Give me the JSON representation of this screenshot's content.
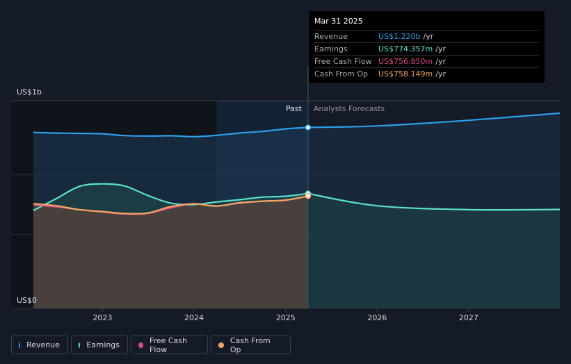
{
  "chart_data": {
    "type": "area",
    "y_axis": {
      "top_label": "US$1b",
      "bottom_label": "US$0",
      "ylim": [
        0,
        1400000000
      ],
      "max_label_value": 1000000000
    },
    "x_axis": {
      "ticks": [
        "2023",
        "2024",
        "2025",
        "2026",
        "2027"
      ],
      "range": [
        "2022-03-31",
        "2027-12-31"
      ]
    },
    "divider": {
      "date": "2025-03-31",
      "past_label": "Past",
      "forecast_label": "Analysts Forecasts"
    },
    "series": [
      {
        "name": "Revenue",
        "color": "#2f9ee9",
        "fill": "#1c3a55",
        "points": [
          [
            "2022-03-31",
            1186000000
          ],
          [
            "2022-06-30",
            1182000000
          ],
          [
            "2022-09-30",
            1180000000
          ],
          [
            "2022-12-31",
            1177000000
          ],
          [
            "2023-03-31",
            1165000000
          ],
          [
            "2023-06-30",
            1162000000
          ],
          [
            "2023-09-30",
            1164000000
          ],
          [
            "2023-12-31",
            1158000000
          ],
          [
            "2024-03-31",
            1167000000
          ],
          [
            "2024-06-30",
            1182000000
          ],
          [
            "2024-09-30",
            1193000000
          ],
          [
            "2024-12-31",
            1210000000
          ],
          [
            "2025-03-31",
            1220000000
          ]
        ],
        "forecast": [
          [
            "2025-03-31",
            1220000000
          ],
          [
            "2025-12-31",
            1230000000
          ],
          [
            "2026-12-31",
            1268000000
          ],
          [
            "2027-12-31",
            1316000000
          ]
        ]
      },
      {
        "name": "Earnings",
        "color": "#5ae0cb",
        "fill": "#1f4a4a",
        "points": [
          [
            "2022-03-31",
            660000000
          ],
          [
            "2022-06-30",
            740000000
          ],
          [
            "2022-09-30",
            822000000
          ],
          [
            "2022-12-31",
            840000000
          ],
          [
            "2023-03-31",
            825000000
          ],
          [
            "2023-06-30",
            762000000
          ],
          [
            "2023-09-30",
            710000000
          ],
          [
            "2023-12-31",
            700000000
          ],
          [
            "2024-03-31",
            718000000
          ],
          [
            "2024-06-30",
            733000000
          ],
          [
            "2024-09-30",
            750000000
          ],
          [
            "2024-12-31",
            756000000
          ],
          [
            "2025-03-31",
            774357000
          ]
        ],
        "forecast": [
          [
            "2025-03-31",
            774357000
          ],
          [
            "2025-12-31",
            692000000
          ],
          [
            "2026-12-31",
            666000000
          ],
          [
            "2027-12-31",
            667000000
          ]
        ]
      },
      {
        "name": "Free Cash Flow",
        "color": "#d94b8c",
        "fill": "#4a2a3a",
        "points": [
          [
            "2022-03-31",
            698000000
          ],
          [
            "2022-06-30",
            685000000
          ],
          [
            "2022-09-30",
            666000000
          ],
          [
            "2022-12-31",
            650000000
          ],
          [
            "2023-03-31",
            637000000
          ],
          [
            "2023-06-30",
            640000000
          ],
          [
            "2023-09-30",
            678000000
          ],
          [
            "2023-12-31",
            705000000
          ],
          [
            "2024-03-31",
            690000000
          ],
          [
            "2024-06-30",
            710000000
          ],
          [
            "2024-09-30",
            722000000
          ],
          [
            "2024-12-31",
            730000000
          ],
          [
            "2025-03-31",
            756850000
          ]
        ]
      },
      {
        "name": "Cash From Op",
        "color": "#f0a860",
        "fill": "#5a4a3a",
        "points": [
          [
            "2022-03-31",
            706000000
          ],
          [
            "2022-06-30",
            692000000
          ],
          [
            "2022-09-30",
            666000000
          ],
          [
            "2022-12-31",
            653000000
          ],
          [
            "2023-03-31",
            640000000
          ],
          [
            "2023-06-30",
            643000000
          ],
          [
            "2023-09-30",
            686000000
          ],
          [
            "2023-12-31",
            705000000
          ],
          [
            "2024-03-31",
            690000000
          ],
          [
            "2024-06-30",
            712000000
          ],
          [
            "2024-09-30",
            723000000
          ],
          [
            "2024-12-31",
            730000000
          ],
          [
            "2025-03-31",
            758149000
          ]
        ]
      }
    ],
    "tooltip": {
      "date": "Mar 31 2025",
      "rows": [
        {
          "label": "Revenue",
          "value": "US$1.220b",
          "unit": "/yr",
          "color": "#2f9ee9"
        },
        {
          "label": "Earnings",
          "value": "US$774.357m",
          "unit": "/yr",
          "color": "#5ae0cb"
        },
        {
          "label": "Free Cash Flow",
          "value": "US$756.850m",
          "unit": "/yr",
          "color": "#d94b8c"
        },
        {
          "label": "Cash From Op",
          "value": "US$758.149m",
          "unit": "/yr",
          "color": "#f0a860"
        }
      ]
    },
    "legend": [
      {
        "label": "Revenue",
        "color": "#2f9ee9"
      },
      {
        "label": "Earnings",
        "color": "#5ae0cb"
      },
      {
        "label": "Free Cash Flow",
        "color": "#d94b8c"
      },
      {
        "label": "Cash From Op",
        "color": "#f0a860"
      }
    ]
  }
}
